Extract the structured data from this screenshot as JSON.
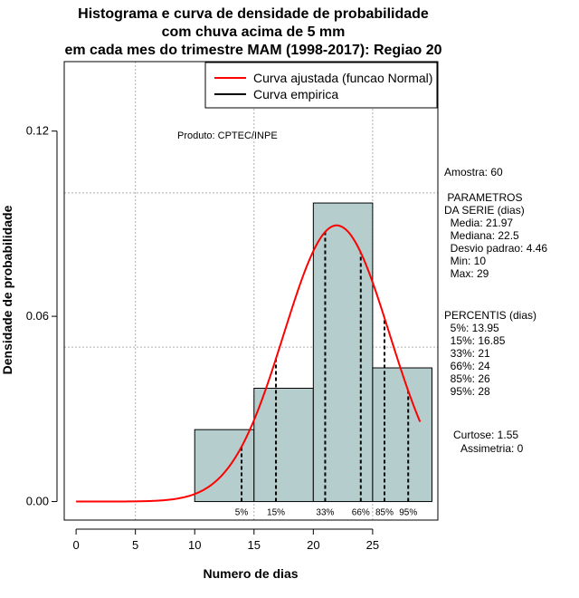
{
  "chart_data": {
    "type": "bar",
    "title_lines": [
      "Histograma e curva de densidade de probabilidade",
      "com chuva acima de 5 mm",
      "em cada mes do trimestre MAM (1998-2017): Regiao 20"
    ],
    "xlabel": "Numero de dias",
    "ylabel": "Densidade de probabilidade",
    "xlim": [
      -1,
      30.5
    ],
    "ylim": [
      -0.006,
      0.1425
    ],
    "x_ticks": [
      0,
      5,
      10,
      15,
      20,
      25
    ],
    "y_ticks": [
      0.0,
      0.06,
      0.12
    ],
    "y_tick_labels": [
      "0.00",
      "0.06",
      "0.12"
    ],
    "grid_x": [
      5,
      15,
      25
    ],
    "grid_y": [
      0.05,
      0.1
    ],
    "bins": [
      {
        "x0": 10,
        "x1": 15,
        "density": 0.0233
      },
      {
        "x0": 15,
        "x1": 20,
        "density": 0.0367
      },
      {
        "x0": 20,
        "x1": 25,
        "density": 0.0967
      },
      {
        "x0": 25,
        "x1": 30,
        "density": 0.0433
      }
    ],
    "normal_fit": {
      "mean": 21.97,
      "sd": 4.46,
      "x_range": [
        0,
        29
      ]
    },
    "percentile_lines": [
      {
        "label": "5%",
        "x": 13.95
      },
      {
        "label": "15%",
        "x": 16.85
      },
      {
        "label": "33%",
        "x": 21
      },
      {
        "label": "66%",
        "x": 24
      },
      {
        "label": "85%",
        "x": 26
      },
      {
        "label": "95%",
        "x": 28
      }
    ],
    "legend": {
      "position": "top-right",
      "entries": [
        {
          "label": "Curva ajustada (funcao Normal)",
          "color": "#ff0000"
        },
        {
          "label": "Curva empirica",
          "color": "#000000"
        }
      ]
    },
    "colors": {
      "bar_fill": "#b5cdcc",
      "curve": "#ff0000",
      "grid": "#b0b0b0"
    }
  },
  "product_label": "Produto: CPTEC/INPE",
  "stats": {
    "amostra": "Amostra: 60",
    "parametros_lines": [
      " PARAMETROS",
      "DA SERIE (dias)",
      "  Media: 21.97",
      "  Mediana: 22.5",
      "  Desvio padrao: 4.46",
      "  Min: 10",
      "  Max: 29"
    ],
    "percentis_lines": [
      "PERCENTIS (dias)",
      "  5%: 13.95",
      "  15%: 16.85",
      "  33%: 21",
      "  66%: 24",
      "  85%: 26",
      "  95%: 28"
    ],
    "curtose": "Curtose: 1.55",
    "assimetria": "Assimetria: 0"
  }
}
